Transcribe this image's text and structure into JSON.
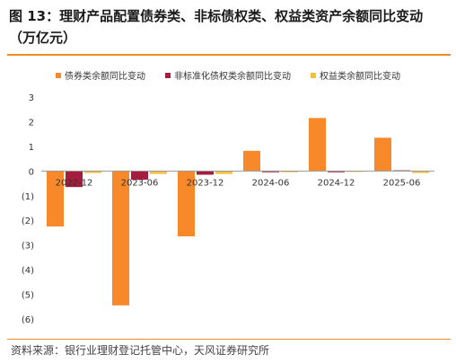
{
  "title": "图 13：理财产品配置债券类、非标债权类、权益类资产余额同比变动（万亿元）",
  "source": "资料来源：银行业理财登记托管中心，天风证券研究所",
  "colors": {
    "bond": "#f7892a",
    "nonstandard": "#a51c3e",
    "equity": "#f2c141",
    "accent": "#f08b24"
  },
  "chart_data": {
    "type": "bar",
    "title": "理财产品配置债券类、非标债权类、权益类资产余额同比变动（万亿元）",
    "categories": [
      "2022-12",
      "2023-06",
      "2023-12",
      "2024-06",
      "2024-12",
      "2025-06"
    ],
    "series": [
      {
        "name": "债券类余额同比变动",
        "values": [
          -2.25,
          -5.45,
          -2.65,
          0.82,
          2.15,
          1.35
        ]
      },
      {
        "name": "非标准化债权类余额同比变动",
        "values": [
          -0.65,
          -0.35,
          -0.15,
          -0.05,
          -0.05,
          0.03
        ]
      },
      {
        "name": "权益类余额同比变动",
        "values": [
          -0.08,
          -0.12,
          -0.12,
          -0.05,
          -0.02,
          -0.08
        ]
      }
    ],
    "ylim": [
      -6,
      3
    ],
    "yticks": [
      "(6)",
      "(5)",
      "(4)",
      "(3)",
      "(2)",
      "(1)",
      "0",
      "1",
      "2",
      "3"
    ],
    "yticks_values": [
      -6,
      -5,
      -4,
      -3,
      -2,
      -1,
      0,
      1,
      2,
      3
    ],
    "legend_position": "top",
    "grid": false
  }
}
